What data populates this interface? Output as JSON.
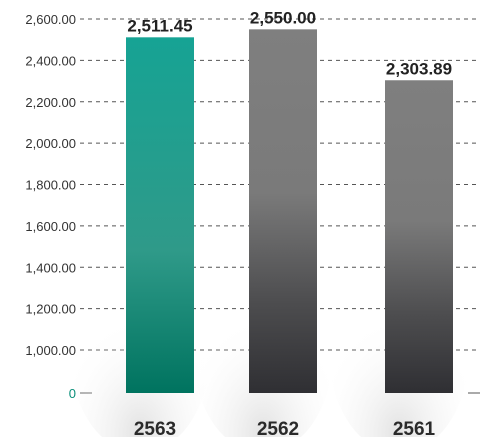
{
  "chart_data": {
    "type": "bar",
    "categories": [
      "2563",
      "2562",
      "2561"
    ],
    "values": [
      2511.45,
      2550.0,
      2303.89
    ],
    "value_labels": [
      "2,511.45",
      "2,550.00",
      "2,303.89"
    ],
    "y_ticks": [
      {
        "value": 0,
        "label": "0"
      },
      {
        "value": 1000,
        "label": "1,000.00"
      },
      {
        "value": 1200,
        "label": "1,200.00"
      },
      {
        "value": 1400,
        "label": "1,400.00"
      },
      {
        "value": 1600,
        "label": "1,600.00"
      },
      {
        "value": 1800,
        "label": "1,800.00"
      },
      {
        "value": 2000,
        "label": "2,000.00"
      },
      {
        "value": 2200,
        "label": "2,200.00"
      },
      {
        "value": 2400,
        "label": "2,400.00"
      },
      {
        "value": 2600,
        "label": "2,600.00"
      }
    ],
    "y_axis_break": true,
    "ylim": [
      0,
      2600
    ],
    "grid": true,
    "colors": {
      "highlight_bar": "#1a9a8a",
      "bar": "#7d7d7d",
      "zero_tick": "#0a8f7a"
    },
    "title": "",
    "xlabel": "",
    "ylabel": ""
  }
}
